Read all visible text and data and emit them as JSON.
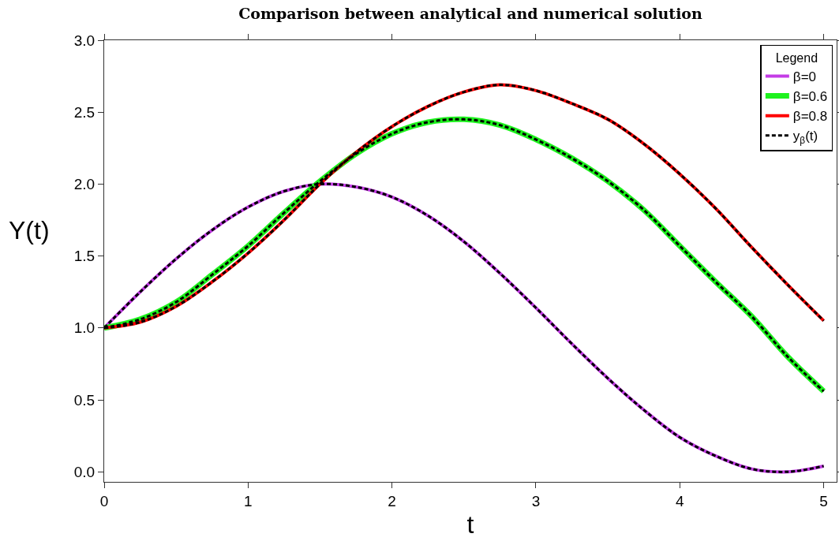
{
  "chart_data": {
    "type": "line",
    "title": "Comparison between analytical and numerical solution",
    "xlabel": "t",
    "ylabel": "Y(t)",
    "legend": "top right",
    "legend_title": "Legend",
    "x": [
      0,
      0.25,
      0.5,
      0.75,
      1,
      1.25,
      1.5,
      1.75,
      2,
      2.25,
      2.5,
      2.75,
      3,
      3.25,
      3.5,
      3.75,
      4,
      4.25,
      4.5,
      4.75,
      5
    ],
    "xlim": [
      0,
      5.09
    ],
    "ylim": [
      -0.07,
      3.0
    ],
    "xticks": [
      0,
      1,
      2,
      3,
      4,
      5
    ],
    "yticks": [
      {
        "value": 0,
        "label": "0.0"
      },
      {
        "value": 0.5,
        "label": "0.5"
      },
      {
        "value": 1,
        "label": "1.0"
      },
      {
        "value": 1.5,
        "label": "1.5"
      },
      {
        "value": 2,
        "label": "2.0"
      },
      {
        "value": 2.5,
        "label": "2.5"
      },
      {
        "value": 3,
        "label": "3.0"
      }
    ],
    "series": [
      {
        "name": "β=0",
        "color": "#c43ce6",
        "line_style": "solid",
        "values": [
          1.0,
          1.25,
          1.48,
          1.68,
          1.84,
          1.95,
          2.0,
          1.98,
          1.91,
          1.78,
          1.6,
          1.38,
          1.14,
          0.89,
          0.65,
          0.43,
          0.24,
          0.11,
          0.02,
          0.0,
          0.04
        ]
      },
      {
        "name": "β=0.6",
        "color": "#1ef21e",
        "line_style": "solid",
        "values": [
          1.0,
          1.06,
          1.18,
          1.37,
          1.57,
          1.8,
          2.02,
          2.21,
          2.35,
          2.43,
          2.45,
          2.41,
          2.31,
          2.18,
          2.02,
          1.82,
          1.57,
          1.32,
          1.08,
          0.8,
          0.56
        ]
      },
      {
        "name": "β=0.8",
        "color": "#ff0000",
        "line_style": "solid",
        "values": [
          1.0,
          1.04,
          1.15,
          1.32,
          1.52,
          1.75,
          2.0,
          2.22,
          2.4,
          2.54,
          2.64,
          2.69,
          2.65,
          2.56,
          2.45,
          2.28,
          2.07,
          1.83,
          1.56,
          1.3,
          1.05
        ]
      },
      {
        "name": "y$_{β}$(t)",
        "color": "#000000",
        "line_style": "dashed",
        "values": [
          1.0,
          1.25,
          1.48,
          1.68,
          1.84,
          1.95,
          2.0,
          1.98,
          1.91,
          1.78,
          1.6,
          1.38,
          1.14,
          0.89,
          0.65,
          0.43,
          0.24,
          0.11,
          0.02,
          0.0,
          0.04
        ]
      },
      {
        "color": "#000000",
        "line_style": "dashed",
        "values": [
          1.0,
          1.06,
          1.18,
          1.37,
          1.57,
          1.8,
          2.02,
          2.21,
          2.35,
          2.43,
          2.45,
          2.41,
          2.31,
          2.18,
          2.02,
          1.82,
          1.57,
          1.32,
          1.08,
          0.8,
          0.56
        ]
      },
      {
        "color": "#000000",
        "line_style": "dashed",
        "values": [
          1.0,
          1.04,
          1.15,
          1.32,
          1.52,
          1.75,
          2.0,
          2.22,
          2.4,
          2.54,
          2.64,
          2.69,
          2.65,
          2.56,
          2.45,
          2.28,
          2.07,
          1.83,
          1.56,
          1.3,
          1.05
        ]
      }
    ]
  }
}
